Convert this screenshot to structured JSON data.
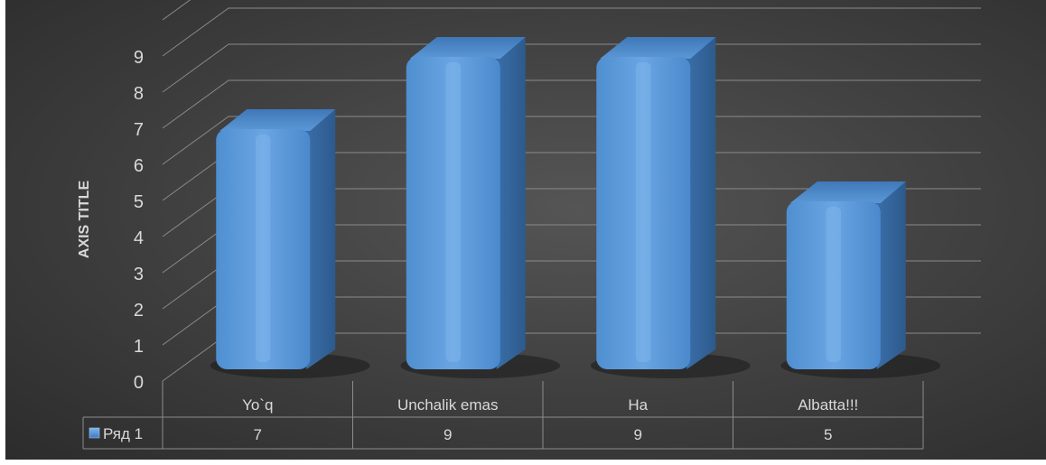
{
  "chart_data": {
    "type": "bar",
    "style": "3d-clustered-column",
    "categories": [
      "Yo`q",
      "Unchalik emas",
      "Ha",
      "Albatta!!!"
    ],
    "series": [
      {
        "name": "Ряд 1",
        "values": [
          7,
          9,
          9,
          5
        ],
        "color": "#5b9bd5"
      }
    ],
    "ylabel": "AXIS TITLE",
    "xlabel": "",
    "ylim": [
      0,
      9
    ],
    "yticks": [
      0,
      1,
      2,
      3,
      4,
      5,
      6,
      7,
      8,
      9
    ],
    "grid": true,
    "legend": "data-table-below",
    "data_table": true,
    "background": "#404040"
  }
}
